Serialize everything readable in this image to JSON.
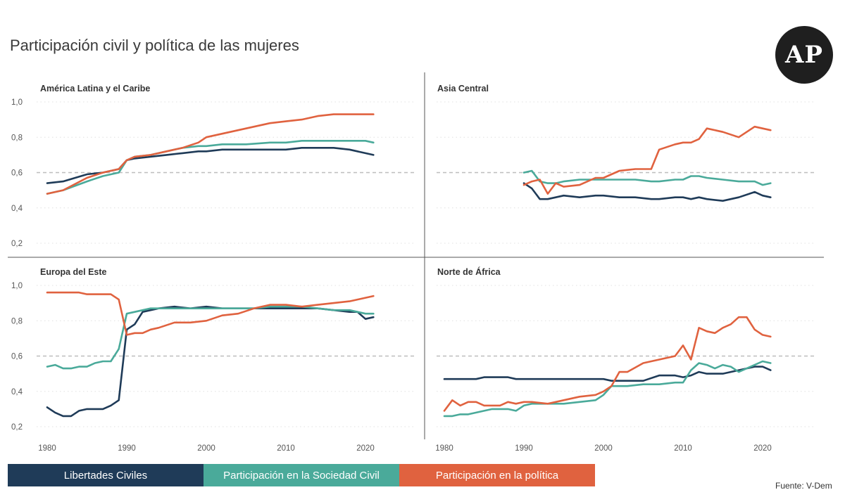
{
  "title": "Participación civil y política de las mujeres",
  "logo": "AP",
  "source": "Fuente: V-Dem",
  "legend": [
    {
      "label": "Libertades Civiles",
      "color": "#1f3b58"
    },
    {
      "label": "Participación en la Sociedad Civil",
      "color": "#4aaa9a"
    },
    {
      "label": "Participación en la política",
      "color": "#e0623f"
    }
  ],
  "chart_data": [
    {
      "type": "line",
      "title": "América Latina y el Caribe",
      "ylim": [
        0.2,
        1.0
      ],
      "yticks": [
        "0,2",
        "0,4",
        "0,6",
        "0,8",
        "1,0"
      ],
      "xticks": [
        "1980",
        "1990",
        "2000",
        "2010",
        "2020"
      ],
      "reference_line": 0.6,
      "x": [
        1980,
        1982,
        1985,
        1987,
        1989,
        1990,
        1991,
        1993,
        1995,
        1997,
        1999,
        2000,
        2002,
        2005,
        2008,
        2010,
        2012,
        2014,
        2016,
        2018,
        2020,
        2021
      ],
      "series": [
        {
          "name": "Libertades Civiles",
          "values": [
            0.54,
            0.55,
            0.59,
            0.6,
            0.62,
            0.67,
            0.68,
            0.69,
            0.7,
            0.71,
            0.72,
            0.72,
            0.73,
            0.73,
            0.73,
            0.73,
            0.74,
            0.74,
            0.74,
            0.73,
            0.71,
            0.7
          ]
        },
        {
          "name": "Participación en la Sociedad Civil",
          "values": [
            0.48,
            0.5,
            0.55,
            0.58,
            0.6,
            0.67,
            0.69,
            0.7,
            0.72,
            0.74,
            0.75,
            0.75,
            0.76,
            0.76,
            0.77,
            0.77,
            0.78,
            0.78,
            0.78,
            0.78,
            0.78,
            0.77
          ]
        },
        {
          "name": "Participación en la política",
          "values": [
            0.48,
            0.5,
            0.57,
            0.6,
            0.62,
            0.67,
            0.69,
            0.7,
            0.72,
            0.74,
            0.77,
            0.8,
            0.82,
            0.85,
            0.88,
            0.89,
            0.9,
            0.92,
            0.93,
            0.93,
            0.93,
            0.93
          ]
        }
      ]
    },
    {
      "type": "line",
      "title": "Asia Central",
      "ylim": [
        0.2,
        1.0
      ],
      "xticks": [
        "1980",
        "1990",
        "2000",
        "2010",
        "2020"
      ],
      "reference_line": 0.6,
      "x": [
        1990,
        1991,
        1992,
        1993,
        1994,
        1995,
        1997,
        1999,
        2000,
        2002,
        2004,
        2006,
        2007,
        2009,
        2010,
        2011,
        2012,
        2013,
        2015,
        2017,
        2019,
        2020,
        2021
      ],
      "series": [
        {
          "name": "Libertades Civiles",
          "values": [
            0.54,
            0.51,
            0.45,
            0.45,
            0.46,
            0.47,
            0.46,
            0.47,
            0.47,
            0.46,
            0.46,
            0.45,
            0.45,
            0.46,
            0.46,
            0.45,
            0.46,
            0.45,
            0.44,
            0.46,
            0.49,
            0.47,
            0.46
          ]
        },
        {
          "name": "Participación en la Sociedad Civil",
          "values": [
            0.6,
            0.61,
            0.55,
            0.54,
            0.54,
            0.55,
            0.56,
            0.56,
            0.56,
            0.56,
            0.56,
            0.55,
            0.55,
            0.56,
            0.56,
            0.58,
            0.58,
            0.57,
            0.56,
            0.55,
            0.55,
            0.53,
            0.54
          ]
        },
        {
          "name": "Participación en la política",
          "values": [
            0.53,
            0.55,
            0.56,
            0.48,
            0.54,
            0.52,
            0.53,
            0.57,
            0.57,
            0.61,
            0.62,
            0.62,
            0.73,
            0.76,
            0.77,
            0.77,
            0.79,
            0.85,
            0.83,
            0.8,
            0.86,
            0.85,
            0.84
          ]
        }
      ]
    },
    {
      "type": "line",
      "title": "Europa del Este",
      "ylim": [
        0.2,
        1.0
      ],
      "yticks": [
        "0,2",
        "0,4",
        "0,6",
        "0,8",
        "1,0"
      ],
      "xticks": [
        "1980",
        "1990",
        "2000",
        "2010",
        "2020"
      ],
      "reference_line": 0.6,
      "x": [
        1980,
        1981,
        1982,
        1983,
        1984,
        1985,
        1986,
        1987,
        1988,
        1989,
        1990,
        1991,
        1992,
        1993,
        1994,
        1996,
        1998,
        2000,
        2002,
        2004,
        2006,
        2008,
        2010,
        2012,
        2014,
        2016,
        2018,
        2019,
        2020,
        2021
      ],
      "series": [
        {
          "name": "Libertades Civiles",
          "values": [
            0.31,
            0.28,
            0.26,
            0.26,
            0.29,
            0.3,
            0.3,
            0.3,
            0.32,
            0.35,
            0.75,
            0.78,
            0.85,
            0.86,
            0.87,
            0.88,
            0.87,
            0.88,
            0.87,
            0.87,
            0.87,
            0.87,
            0.87,
            0.87,
            0.87,
            0.86,
            0.85,
            0.85,
            0.81,
            0.82
          ]
        },
        {
          "name": "Participación en la Sociedad Civil",
          "values": [
            0.54,
            0.55,
            0.53,
            0.53,
            0.54,
            0.54,
            0.56,
            0.57,
            0.57,
            0.64,
            0.84,
            0.85,
            0.86,
            0.87,
            0.87,
            0.87,
            0.87,
            0.87,
            0.87,
            0.87,
            0.87,
            0.88,
            0.88,
            0.88,
            0.87,
            0.86,
            0.86,
            0.85,
            0.84,
            0.84
          ]
        },
        {
          "name": "Participación en la política",
          "values": [
            0.96,
            0.96,
            0.96,
            0.96,
            0.96,
            0.95,
            0.95,
            0.95,
            0.95,
            0.92,
            0.72,
            0.73,
            0.73,
            0.75,
            0.76,
            0.79,
            0.79,
            0.8,
            0.83,
            0.84,
            0.87,
            0.89,
            0.89,
            0.88,
            0.89,
            0.9,
            0.91,
            0.92,
            0.93,
            0.94
          ]
        }
      ]
    },
    {
      "type": "line",
      "title": "Norte de África",
      "ylim": [
        0.2,
        1.0
      ],
      "xticks": [
        "1980",
        "1990",
        "2000",
        "2010",
        "2020"
      ],
      "reference_line": 0.6,
      "x": [
        1980,
        1981,
        1982,
        1983,
        1984,
        1985,
        1986,
        1987,
        1988,
        1989,
        1990,
        1991,
        1993,
        1995,
        1997,
        1999,
        2000,
        2001,
        2002,
        2003,
        2005,
        2007,
        2009,
        2010,
        2011,
        2012,
        2013,
        2014,
        2015,
        2016,
        2017,
        2018,
        2019,
        2020,
        2021
      ],
      "series": [
        {
          "name": "Libertades Civiles",
          "values": [
            0.47,
            0.47,
            0.47,
            0.47,
            0.47,
            0.48,
            0.48,
            0.48,
            0.48,
            0.47,
            0.47,
            0.47,
            0.47,
            0.47,
            0.47,
            0.47,
            0.47,
            0.46,
            0.46,
            0.46,
            0.46,
            0.49,
            0.49,
            0.48,
            0.49,
            0.51,
            0.5,
            0.5,
            0.5,
            0.51,
            0.52,
            0.53,
            0.54,
            0.54,
            0.52
          ]
        },
        {
          "name": "Participación en la Sociedad Civil",
          "values": [
            0.26,
            0.26,
            0.27,
            0.27,
            0.28,
            0.29,
            0.3,
            0.3,
            0.3,
            0.29,
            0.32,
            0.33,
            0.33,
            0.33,
            0.34,
            0.35,
            0.38,
            0.43,
            0.43,
            0.43,
            0.44,
            0.44,
            0.45,
            0.45,
            0.52,
            0.56,
            0.55,
            0.53,
            0.55,
            0.54,
            0.51,
            0.53,
            0.55,
            0.57,
            0.56
          ]
        },
        {
          "name": "Participación en la política",
          "values": [
            0.29,
            0.35,
            0.32,
            0.34,
            0.34,
            0.32,
            0.32,
            0.32,
            0.34,
            0.33,
            0.34,
            0.34,
            0.33,
            0.35,
            0.37,
            0.38,
            0.4,
            0.43,
            0.51,
            0.51,
            0.56,
            0.58,
            0.6,
            0.66,
            0.58,
            0.76,
            0.74,
            0.73,
            0.76,
            0.78,
            0.82,
            0.82,
            0.75,
            0.72,
            0.71
          ]
        }
      ]
    }
  ]
}
